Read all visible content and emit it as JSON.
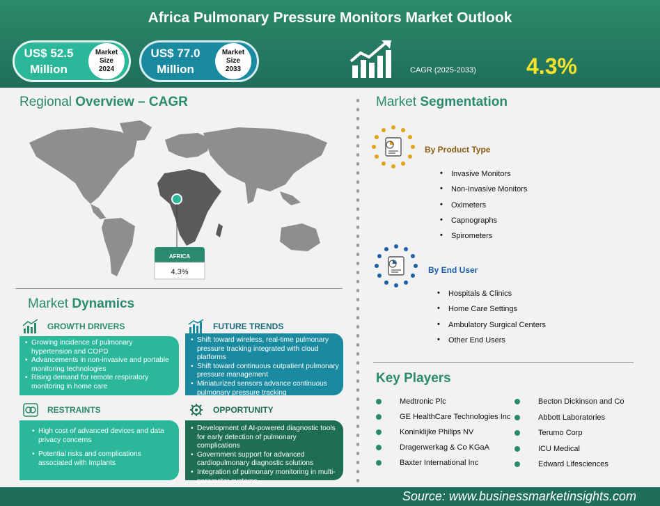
{
  "header": {
    "title": "Africa Pulmonary Pressure Monitors Market Outlook",
    "market_2024": {
      "value_line1": "US$ 52.5",
      "value_line2": "Million",
      "badge_line1": "Market",
      "badge_line2": "Size",
      "badge_line3": "2024"
    },
    "market_2033": {
      "value_line1": "US$ 77.0",
      "value_line2": "Million",
      "badge_line1": "Market",
      "badge_line2": "Size",
      "badge_line3": "2033"
    },
    "cagr_label": "CAGR (2025-2033)",
    "cagr_value": "4.3%"
  },
  "regional": {
    "heading_light": "Regional ",
    "heading_bold": "Overview – CAGR",
    "region_name": "AFRICA",
    "region_value": "4.3%"
  },
  "dynamics": {
    "heading_light": "Market ",
    "heading_bold": "Dynamics",
    "growth_drivers": {
      "title": "GROWTH DRIVERS",
      "items": [
        "Growing incidence of pulmonary hypertension and COPD",
        "Advancements in non-invasive and portable monitoring technologies",
        "Rising demand for remote respiratory monitoring in home care"
      ]
    },
    "future_trends": {
      "title": "FUTURE TRENDS",
      "items": [
        "Shift toward wireless, real-time pulmonary pressure tracking integrated with cloud platforms",
        "Shift toward continuous outpatient pulmonary pressure management",
        "Miniaturized sensors advance continuous pulmonary pressure tracking"
      ]
    },
    "restraints": {
      "title": "RESTRAINTS",
      "items": [
        "High cost of advanced devices and data privacy concerns",
        "Potential risks and complications associated with Implants"
      ]
    },
    "opportunity": {
      "title": "OPPORTUNITY",
      "items": [
        "Development of AI-powered diagnostic tools for early detection of pulmonary complications",
        "Government support for advanced cardiopulmonary diagnostic solutions",
        "Integration of pulmonary monitoring in multi-parameter systems"
      ]
    }
  },
  "segmentation": {
    "heading_light": "Market ",
    "heading_bold": "Segmentation",
    "product_type": {
      "title": "By Product Type",
      "items": [
        "Invasive Monitors",
        "Non-Invasive Monitors",
        "Oximeters",
        "Capnographs",
        "Spirometers"
      ]
    },
    "end_user": {
      "title": "By End User",
      "items": [
        "Hospitals & Clinics",
        "Home Care Settings",
        "Ambulatory Surgical Centers",
        "Other End Users"
      ]
    }
  },
  "key_players": {
    "heading": "Key Players",
    "left": [
      "Medtronic Plc",
      "GE HealthCare Technologies Inc",
      "Koninklijke Philips NV",
      "Dragerwerkag & Co KGaA",
      "Baxter International Inc"
    ],
    "right": [
      "Becton Dickinson and Co",
      "Abbott Laboratories",
      "Terumo Corp",
      "ICU Medical",
      "Edward Lifesciences"
    ]
  },
  "footer": {
    "source": "Source:  www.businessmarketinsights.com"
  },
  "colors": {
    "header_green": "#1f6e5a",
    "accent_green": "#2a8a6e",
    "teal": "#1a8aa0",
    "dark_green": "#1e6e52",
    "cagr_yellow": "#f5e22a",
    "segment_orange": "#e3a21a",
    "segment_blue": "#1a5fa8"
  },
  "icons": [
    "bar-growth-icon",
    "trend-chart-icon",
    "restraint-link-icon",
    "opportunity-gear-icon",
    "report-pie-icon",
    "map-pin-icon"
  ]
}
